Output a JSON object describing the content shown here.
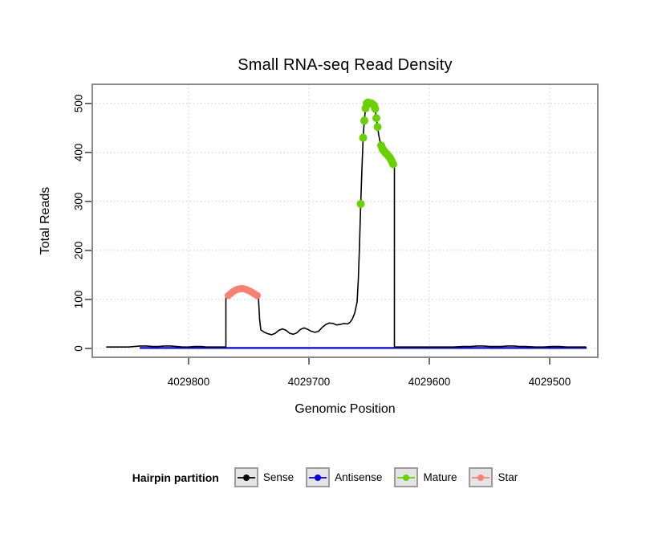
{
  "chart_data": {
    "type": "line",
    "title": "Small RNA-seq Read Density",
    "xlabel": "Genomic Position",
    "ylabel": "Total Reads",
    "x_axis": {
      "ticks": [
        4029800,
        4029700,
        4029600,
        4029500
      ],
      "domain": [
        4029880,
        4029460
      ],
      "reversed": true
    },
    "y_axis": {
      "ticks": [
        0,
        100,
        200,
        300,
        400,
        500
      ],
      "domain": [
        -18,
        539
      ]
    },
    "grid": "dotted",
    "style": {
      "grid_color": "#cdcdcd",
      "panel_border_color": "#8a8a8a",
      "background": "#ffffff",
      "tick_color": "#222222"
    },
    "series": [
      {
        "name": "Antisense",
        "kind": "line",
        "color": "#0000ee",
        "width": 2.2,
        "points": [
          [
            4029840,
            1
          ],
          [
            4029470,
            1
          ]
        ]
      },
      {
        "name": "Sense",
        "kind": "line",
        "color": "#000000",
        "width": 1.6,
        "points": [
          [
            4029868,
            3
          ],
          [
            4029858,
            3
          ],
          [
            4029850,
            3
          ],
          [
            4029845,
            4
          ],
          [
            4029840,
            5
          ],
          [
            4029835,
            5
          ],
          [
            4029830,
            4
          ],
          [
            4029825,
            4
          ],
          [
            4029820,
            5
          ],
          [
            4029815,
            5
          ],
          [
            4029810,
            4
          ],
          [
            4029805,
            3
          ],
          [
            4029800,
            3
          ],
          [
            4029795,
            4
          ],
          [
            4029790,
            4
          ],
          [
            4029785,
            3
          ],
          [
            4029780,
            3
          ],
          [
            4029774,
            3
          ],
          [
            4029770,
            3
          ],
          [
            4029769,
            3
          ],
          [
            4029769,
            104
          ],
          [
            4029767,
            108
          ],
          [
            4029765,
            112
          ],
          [
            4029763,
            116
          ],
          [
            4029761,
            119
          ],
          [
            4029759,
            121
          ],
          [
            4029757,
            122
          ],
          [
            4029755,
            122
          ],
          [
            4029753,
            121
          ],
          [
            4029751,
            119
          ],
          [
            4029749,
            117
          ],
          [
            4029747,
            114
          ],
          [
            4029745,
            111
          ],
          [
            4029743,
            108
          ],
          [
            4029742,
            105
          ],
          [
            4029741,
            60
          ],
          [
            4029740,
            38
          ],
          [
            4029737,
            33
          ],
          [
            4029734,
            30
          ],
          [
            4029731,
            28
          ],
          [
            4029728,
            31
          ],
          [
            4029725,
            37
          ],
          [
            4029722,
            40
          ],
          [
            4029719,
            37
          ],
          [
            4029716,
            31
          ],
          [
            4029713,
            29
          ],
          [
            4029710,
            32
          ],
          [
            4029707,
            39
          ],
          [
            4029704,
            42
          ],
          [
            4029701,
            39
          ],
          [
            4029698,
            35
          ],
          [
            4029695,
            33
          ],
          [
            4029692,
            35
          ],
          [
            4029689,
            43
          ],
          [
            4029686,
            49
          ],
          [
            4029683,
            52
          ],
          [
            4029680,
            51
          ],
          [
            4029677,
            48
          ],
          [
            4029674,
            49
          ],
          [
            4029671,
            51
          ],
          [
            4029668,
            50
          ],
          [
            4029666,
            53
          ],
          [
            4029664,
            60
          ],
          [
            4029662,
            72
          ],
          [
            4029660,
            95
          ],
          [
            4029659,
            140
          ],
          [
            4029658,
            210
          ],
          [
            4029657,
            295
          ],
          [
            4029656,
            365
          ],
          [
            4029655,
            430
          ],
          [
            4029654,
            465
          ],
          [
            4029653,
            490
          ],
          [
            4029652,
            500
          ],
          [
            4029651,
            502
          ],
          [
            4029650,
            501
          ],
          [
            4029649,
            500
          ],
          [
            4029648,
            500
          ],
          [
            4029647,
            498
          ],
          [
            4029646,
            496
          ],
          [
            4029645,
            489
          ],
          [
            4029644,
            470
          ],
          [
            4029643,
            452
          ],
          [
            4029642,
            435
          ],
          [
            4029641,
            423
          ],
          [
            4029640,
            414
          ],
          [
            4029639,
            408
          ],
          [
            4029638,
            404
          ],
          [
            4029637,
            401
          ],
          [
            4029636,
            398
          ],
          [
            4029635,
            396
          ],
          [
            4029634,
            393
          ],
          [
            4029633,
            390
          ],
          [
            4029632,
            386
          ],
          [
            4029631,
            381
          ],
          [
            4029630,
            376
          ],
          [
            4029629,
            373
          ],
          [
            4029629,
            3
          ],
          [
            4029625,
            3
          ],
          [
            4029618,
            3
          ],
          [
            4029610,
            3
          ],
          [
            4029600,
            3
          ],
          [
            4029590,
            3
          ],
          [
            4029580,
            3
          ],
          [
            4029572,
            4
          ],
          [
            4029566,
            4
          ],
          [
            4029560,
            5
          ],
          [
            4029555,
            5
          ],
          [
            4029550,
            4
          ],
          [
            4029545,
            4
          ],
          [
            4029540,
            4
          ],
          [
            4029535,
            5
          ],
          [
            4029530,
            5
          ],
          [
            4029525,
            4
          ],
          [
            4029520,
            4
          ],
          [
            4029512,
            3
          ],
          [
            4029505,
            3
          ],
          [
            4029498,
            4
          ],
          [
            4029492,
            4
          ],
          [
            4029486,
            3
          ],
          [
            4029478,
            3
          ],
          [
            4029470,
            3
          ]
        ]
      },
      {
        "name": "Mature",
        "kind": "points",
        "color": "#69d100",
        "radius": 5,
        "points": [
          [
            4029657,
            295
          ],
          [
            4029655,
            430
          ],
          [
            4029654,
            465
          ],
          [
            4029653,
            490
          ],
          [
            4029652,
            500
          ],
          [
            4029651,
            502
          ],
          [
            4029650,
            501
          ],
          [
            4029649,
            500
          ],
          [
            4029648,
            500
          ],
          [
            4029647,
            498
          ],
          [
            4029646,
            496
          ],
          [
            4029645,
            489
          ],
          [
            4029644,
            470
          ],
          [
            4029643,
            452
          ],
          [
            4029640,
            414
          ],
          [
            4029639,
            408
          ],
          [
            4029638,
            404
          ],
          [
            4029637,
            401
          ],
          [
            4029636,
            398
          ],
          [
            4029635,
            396
          ],
          [
            4029634,
            393
          ],
          [
            4029633,
            390
          ],
          [
            4029632,
            386
          ],
          [
            4029631,
            381
          ],
          [
            4029630,
            376
          ]
        ]
      },
      {
        "name": "Star",
        "kind": "points",
        "color": "#fa8072",
        "radius": 4.5,
        "points": [
          [
            4029767,
            108
          ],
          [
            4029765,
            112
          ],
          [
            4029763,
            116
          ],
          [
            4029761,
            119
          ],
          [
            4029759,
            121
          ],
          [
            4029757,
            122
          ],
          [
            4029755,
            122
          ],
          [
            4029753,
            121
          ],
          [
            4029751,
            119
          ],
          [
            4029749,
            117
          ],
          [
            4029747,
            114
          ],
          [
            4029745,
            111
          ],
          [
            4029743,
            108
          ]
        ]
      }
    ]
  },
  "legend": {
    "title": "Hairpin partition",
    "items": [
      {
        "label": "Sense",
        "color": "#000000"
      },
      {
        "label": "Antisense",
        "color": "#0000ee"
      },
      {
        "label": "Mature",
        "color": "#69d100"
      },
      {
        "label": "Star",
        "color": "#fa8072"
      }
    ]
  }
}
